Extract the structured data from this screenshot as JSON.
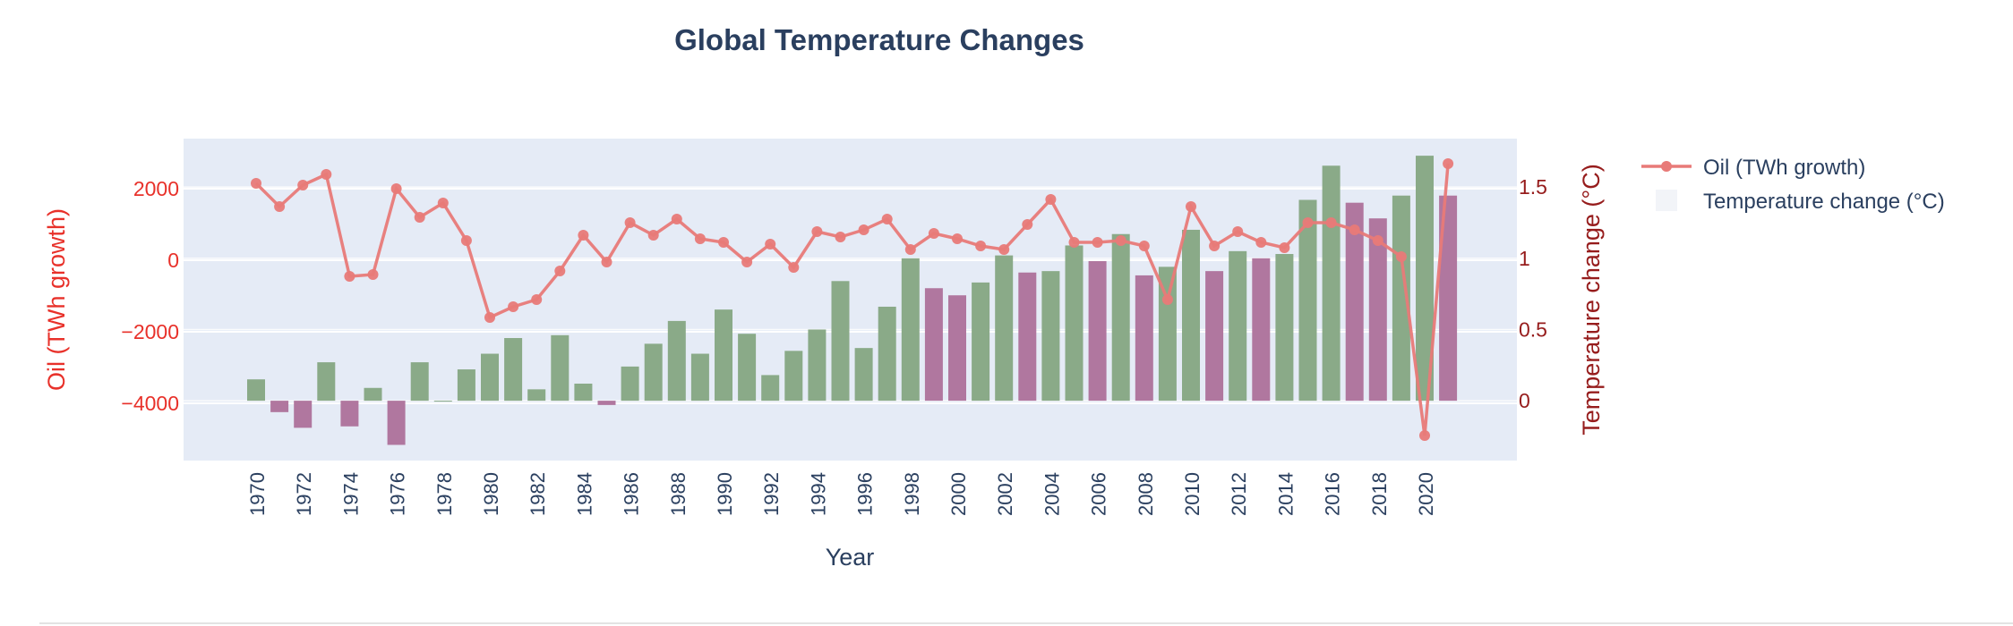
{
  "chart_data": {
    "type": "bar+line",
    "title": "Global Temperature Changes",
    "xlabel": "Year",
    "ylabel_left": "Oil (TWh growth)",
    "ylabel_right": "Temperature change (°C)",
    "x": [
      1970,
      1971,
      1972,
      1973,
      1974,
      1975,
      1976,
      1977,
      1978,
      1979,
      1980,
      1981,
      1982,
      1983,
      1984,
      1985,
      1986,
      1987,
      1988,
      1989,
      1990,
      1991,
      1992,
      1993,
      1994,
      1995,
      1996,
      1997,
      1998,
      1999,
      2000,
      2001,
      2002,
      2003,
      2004,
      2005,
      2006,
      2007,
      2008,
      2009,
      2010,
      2011,
      2012,
      2013,
      2014,
      2015,
      2016,
      2017,
      2018,
      2019,
      2020,
      2021
    ],
    "x_tick_labels": [
      "1970",
      "1972",
      "1974",
      "1976",
      "1978",
      "1980",
      "1982",
      "1984",
      "1986",
      "1988",
      "1990",
      "1992",
      "1994",
      "1996",
      "1998",
      "2000",
      "2002",
      "2004",
      "2006",
      "2008",
      "2010",
      "2012",
      "2014",
      "2016",
      "2018",
      "2020"
    ],
    "y_left_ticks": [
      -4000,
      -2000,
      0,
      2000
    ],
    "y_left_tick_labels": [
      "−4000",
      "−2000",
      "0",
      "2000"
    ],
    "y_right_ticks": [
      0,
      0.5,
      1,
      1.5
    ],
    "y_right_tick_labels": [
      "0",
      "0.5",
      "1",
      "1.5"
    ],
    "ylim_left": [
      -5600,
      3400
    ],
    "ylim_right": [
      -0.42,
      1.84
    ],
    "series": [
      {
        "name": "Oil (TWh growth)",
        "type": "line",
        "axis": "left",
        "color": "#e87a78",
        "values": [
          2150,
          1500,
          2100,
          2400,
          -450,
          -400,
          2000,
          1200,
          1600,
          550,
          -1600,
          -1300,
          -1100,
          -300,
          700,
          -50,
          1050,
          700,
          1150,
          600,
          500,
          -50,
          450,
          -200,
          800,
          650,
          850,
          1150,
          300,
          750,
          600,
          400,
          300,
          1000,
          1700,
          500,
          500,
          550,
          400,
          -1100,
          1500,
          400,
          800,
          500,
          350,
          1050,
          1050,
          850,
          550,
          100,
          -4900,
          2700
        ]
      },
      {
        "name": "Temperature change (°C)",
        "type": "bar",
        "axis": "right",
        "positive_color": "#8aaa88",
        "negative_color": "#b0779f",
        "highlight_years": [
          1999,
          2000,
          2003,
          2006,
          2008,
          2011,
          2013,
          2017,
          2018,
          2021
        ],
        "values": [
          0.15,
          -0.08,
          -0.19,
          0.27,
          -0.18,
          0.09,
          -0.31,
          0.27,
          0,
          0.22,
          0.33,
          0.44,
          0.08,
          0.46,
          0.12,
          -0.03,
          0.24,
          0.4,
          0.56,
          0.33,
          0.64,
          0.47,
          0.18,
          0.35,
          0.5,
          0.84,
          0.37,
          0.66,
          1.0,
          0.79,
          0.74,
          0.83,
          1.02,
          0.9,
          0.91,
          1.09,
          0.98,
          1.17,
          0.88,
          0.94,
          1.2,
          0.91,
          1.05,
          1.0,
          1.03,
          1.41,
          1.65,
          1.39,
          1.28,
          1.44,
          1.72,
          1.44
        ]
      }
    ],
    "legend": {
      "placement": "right",
      "entries": [
        "Oil (TWh growth)",
        "Temperature change (°C)"
      ]
    },
    "colors": {
      "plot_bg": "#e5ebf6",
      "grid": "#ffffff",
      "title": "#2a3f5f",
      "left_axis": "#e8312a",
      "right_axis": "#961c1c",
      "tick": "#2a3f5f"
    },
    "grid": true
  }
}
